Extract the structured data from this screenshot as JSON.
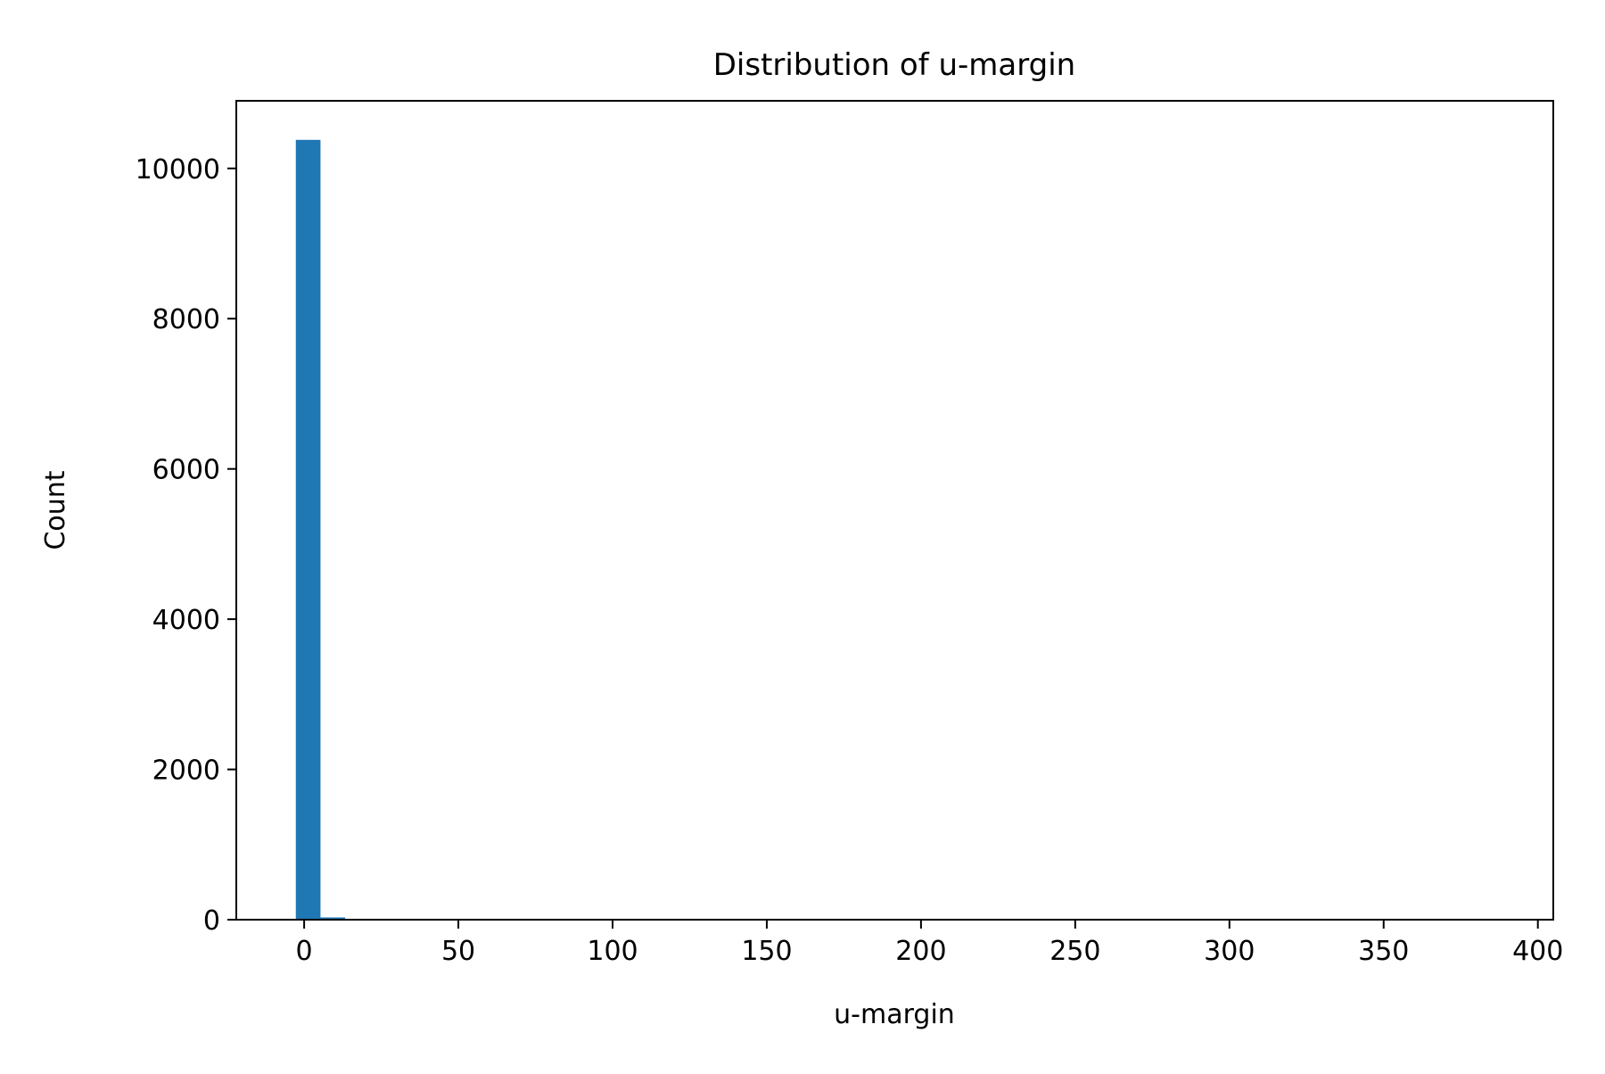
{
  "chart_data": {
    "type": "bar",
    "title": "Distribution of u-margin",
    "xlabel": "u-margin",
    "ylabel": "Count",
    "xlim": [
      -22,
      405
    ],
    "ylim": [
      0,
      10900
    ],
    "xticks": [
      0,
      50,
      100,
      150,
      200,
      250,
      300,
      350,
      400
    ],
    "xtick_labels": [
      "0",
      "50",
      "100",
      "150",
      "200",
      "250",
      "300",
      "350",
      "400"
    ],
    "yticks": [
      0,
      2000,
      4000,
      6000,
      8000,
      10000
    ],
    "ytick_labels": [
      "0",
      "2000",
      "4000",
      "6000",
      "8000",
      "10000"
    ],
    "grid": false,
    "bar_color": "#1f77b4",
    "bins": [
      {
        "x0": -2.7,
        "x1": 5.3,
        "value": 10380
      },
      {
        "x0": 5.3,
        "x1": 13.3,
        "value": 30
      }
    ]
  }
}
